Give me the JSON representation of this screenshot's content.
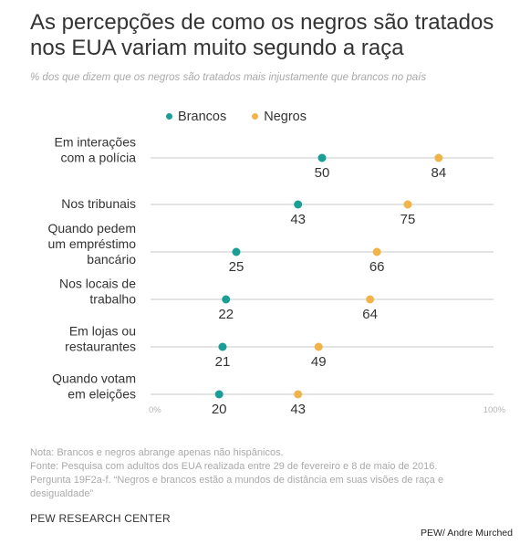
{
  "header": {
    "title_line1": "As percepções de como os negros são tratados",
    "title_line2": "nos EUA variam muito segundo a raça",
    "subtitle": "% dos que dizem que os negros são tratados mais injustamente que brancos no país"
  },
  "colors": {
    "brancos": "#1a9e96",
    "negros": "#f0b44a",
    "grid": "#c9c9c9",
    "text": "#333333"
  },
  "chart_data": {
    "type": "dot",
    "xlim": [
      0,
      100
    ],
    "x_tick_labels": [
      "0%",
      "100%"
    ],
    "grid": false,
    "legend_position": "top",
    "categories": [
      [
        "Em interações",
        "com a polícia"
      ],
      [
        "Nos tribunais"
      ],
      [
        "Quando pedem",
        "um empréstimo",
        "bancário"
      ],
      [
        "Nos locais de",
        "trabalho"
      ],
      [
        "Em lojas ou",
        "restaurantes"
      ],
      [
        "Quando votam",
        "em eleições"
      ]
    ],
    "series": [
      {
        "name": "Brancos",
        "values": [
          50,
          43,
          25,
          22,
          21,
          20
        ]
      },
      {
        "name": "Negros",
        "values": [
          84,
          75,
          66,
          64,
          49,
          43
        ]
      }
    ]
  },
  "footer": {
    "note": "Nota: Brancos e negros abrange apenas não hispânicos.",
    "source": "Fonte: Pesquisa com adultos dos EUA realizada entre 29 de fevereiro e 8 de maio de 2016.",
    "question": "Pergunta 19F2a-f. “Negros e brancos estão a mundos de distância em suas visões de raça e desigualdade”",
    "org": "PEW RESEARCH CENTER",
    "credit": "PEW/ Andre Murched"
  }
}
